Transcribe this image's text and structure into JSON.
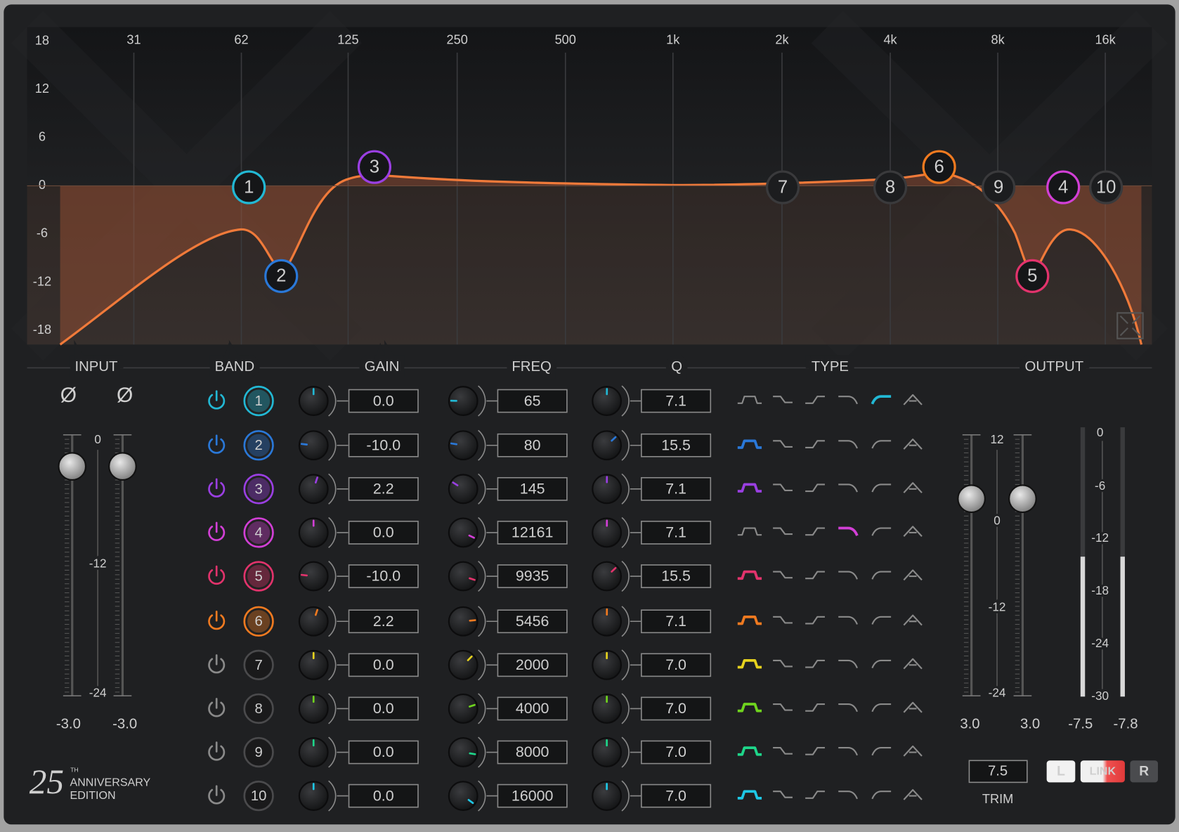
{
  "graph": {
    "db_labels": [
      "18",
      "12",
      "6",
      "0",
      "-6",
      "-12",
      "-18"
    ],
    "freq_labels": [
      "31",
      "62",
      "125",
      "250",
      "500",
      "1k",
      "2k",
      "4k",
      "8k",
      "16k"
    ]
  },
  "headers": [
    "INPUT",
    "BAND",
    "GAIN",
    "FREQ",
    "Q",
    "TYPE",
    "OUTPUT"
  ],
  "input": {
    "phase": [
      "Ø",
      "Ø"
    ],
    "scale": [
      "0",
      "-12",
      "-24"
    ],
    "values": [
      "-3.0",
      "-3.0"
    ]
  },
  "bands": [
    {
      "number": "1",
      "gain": "0.0",
      "freq": "65",
      "q": "7.1",
      "color": "#22b8d4"
    },
    {
      "number": "2",
      "gain": "-10.0",
      "freq": "80",
      "q": "15.5",
      "color": "#2a78d8"
    },
    {
      "number": "3",
      "gain": "2.2",
      "freq": "145",
      "q": "7.1",
      "color": "#9a3fe2"
    },
    {
      "number": "4",
      "gain": "0.0",
      "freq": "12161",
      "q": "7.1",
      "color": "#d23fd6"
    },
    {
      "number": "5",
      "gain": "-10.0",
      "freq": "9935",
      "q": "15.5",
      "color": "#e2336c"
    },
    {
      "number": "6",
      "gain": "2.2",
      "freq": "5456",
      "q": "7.1",
      "color": "#f07a20"
    },
    {
      "number": "7",
      "gain": "0.0",
      "freq": "2000",
      "q": "7.0",
      "color": "#e6d21e"
    },
    {
      "number": "8",
      "gain": "0.0",
      "freq": "4000",
      "q": "7.0",
      "color": "#6fd41e"
    },
    {
      "number": "9",
      "gain": "0.0",
      "freq": "8000",
      "q": "7.0",
      "color": "#1ed68a"
    },
    {
      "number": "10",
      "gain": "0.0",
      "freq": "16000",
      "q": "7.0",
      "color": "#1ec8e6"
    }
  ],
  "output": {
    "scale": [
      "12",
      "0",
      "-12",
      "-24"
    ],
    "values": [
      "3.0",
      "3.0"
    ],
    "meter_scale": [
      "0",
      "-6",
      "-12",
      "-18",
      "-24",
      "-30"
    ],
    "meter_values": [
      "-7.5",
      "-7.8"
    ],
    "trim": "7.5",
    "trim_label": "TRIM",
    "buttons": [
      "L",
      "LINK",
      "R"
    ]
  },
  "logo": {
    "number": "25",
    "suffix": "TH",
    "line1": "ANNIVERSARY",
    "line2": "EDITION"
  }
}
